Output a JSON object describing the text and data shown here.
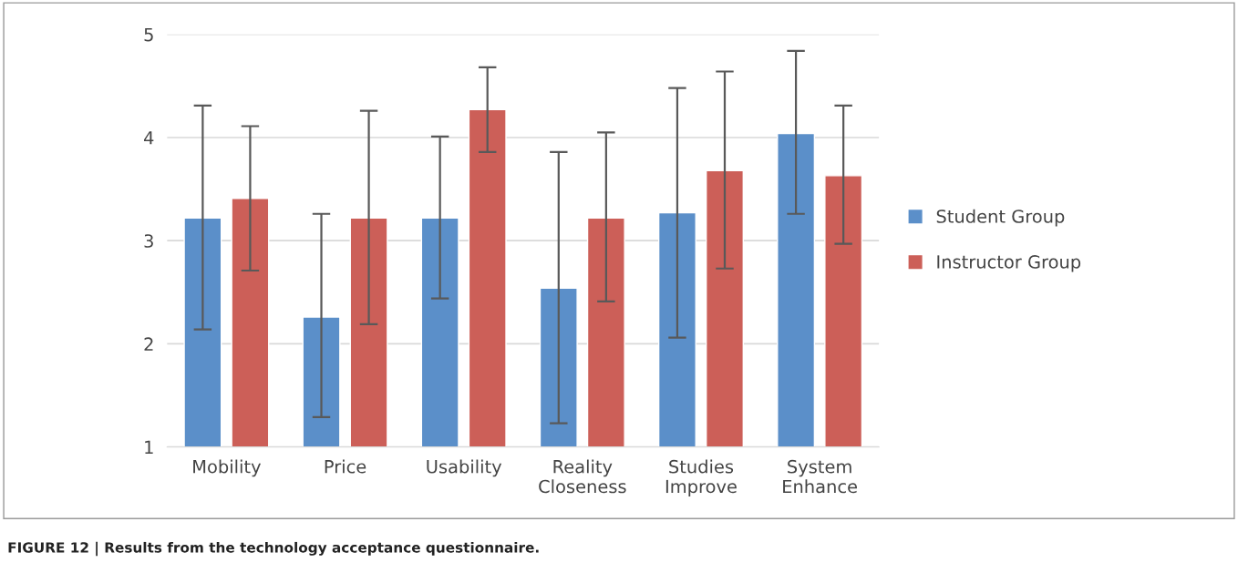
{
  "chart_data": {
    "type": "bar",
    "categories": [
      "Mobility",
      "Price",
      "Usability",
      "Reality\nCloseness",
      "Studies\nImprove",
      "System\nEnhance"
    ],
    "series": [
      {
        "name": "Student Group",
        "color": "#5b8fc9",
        "values": [
          3.22,
          2.26,
          3.22,
          2.54,
          3.27,
          4.04
        ],
        "errors": [
          [
            2.14,
            4.31
          ],
          [
            1.29,
            3.26
          ],
          [
            2.44,
            4.01
          ],
          [
            1.23,
            3.86
          ],
          [
            2.06,
            4.48
          ],
          [
            3.26,
            4.84
          ]
        ]
      },
      {
        "name": "Instructor Group",
        "color": "#cc5f58",
        "values": [
          3.41,
          3.22,
          4.27,
          3.22,
          3.68,
          3.63
        ],
        "errors": [
          [
            2.71,
            4.11
          ],
          [
            2.19,
            4.26
          ],
          [
            3.86,
            4.68
          ],
          [
            2.41,
            4.05
          ],
          [
            2.73,
            4.64
          ],
          [
            2.97,
            4.31
          ]
        ]
      }
    ],
    "ylim": [
      1,
      5
    ],
    "yticks": [
      1,
      2,
      3,
      4,
      5
    ],
    "grid": "y",
    "legend": "right",
    "annotations": [
      "FIGURE 12 | Results from the technology acceptance questionnaire."
    ]
  }
}
